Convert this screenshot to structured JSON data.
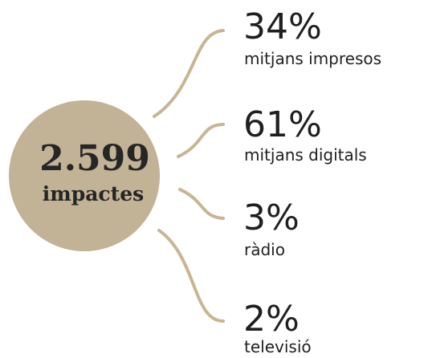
{
  "center": {
    "value": "2.599",
    "label": "impactes"
  },
  "items": [
    {
      "value": "34%",
      "label": "mitjans impresos"
    },
    {
      "value": "61%",
      "label": "mitjans digitals"
    },
    {
      "value": "3%",
      "label": "ràdio"
    },
    {
      "value": "2%",
      "label": "televisió"
    }
  ]
}
